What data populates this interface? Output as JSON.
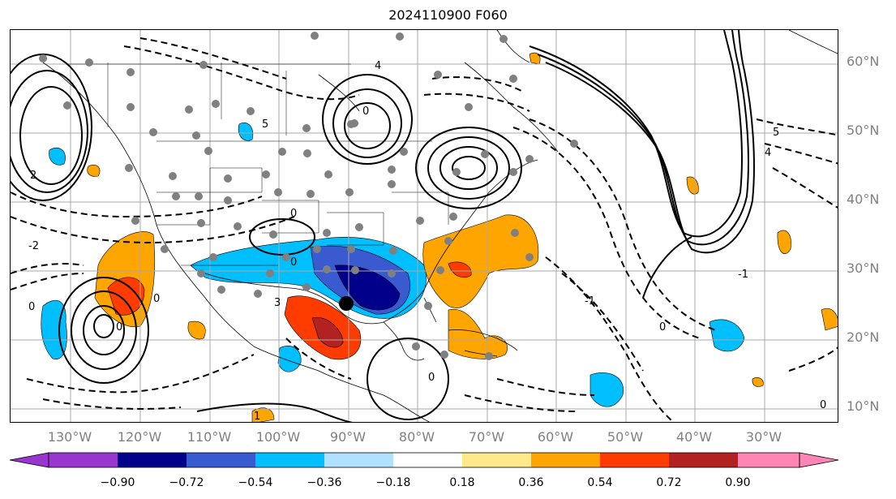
{
  "title": "2024110900 F060",
  "lat_labels": [
    "10°N",
    "20°N",
    "30°N",
    "40°N",
    "50°N",
    "60°N"
  ],
  "lon_labels": [
    "130°W",
    "120°W",
    "110°W",
    "100°W",
    "90°W",
    "80°W",
    "70°W",
    "60°W",
    "50°W",
    "40°W",
    "30°W"
  ],
  "contour_labels": [
    "-2",
    "-1",
    "0",
    "1",
    "2",
    "3",
    "4",
    "5"
  ],
  "colorbar": {
    "ticks": [
      "−0.90",
      "−0.72",
      "−0.54",
      "−0.36",
      "−0.18",
      "0.18",
      "0.36",
      "0.54",
      "0.72",
      "0.90"
    ],
    "colors": [
      "#9a36d0",
      "#00008b",
      "#3a5bd0",
      "#00bfff",
      "#b0e2ff",
      "#ffffff",
      "#ffe98a",
      "#ffa500",
      "#ff3c00",
      "#b22222",
      "#ff85b4"
    ]
  },
  "colors": {
    "land_border": "#000000",
    "contour": "#000000",
    "station_dot": "#808080",
    "grid": "#a9a9a9",
    "marker": "#000000"
  }
}
